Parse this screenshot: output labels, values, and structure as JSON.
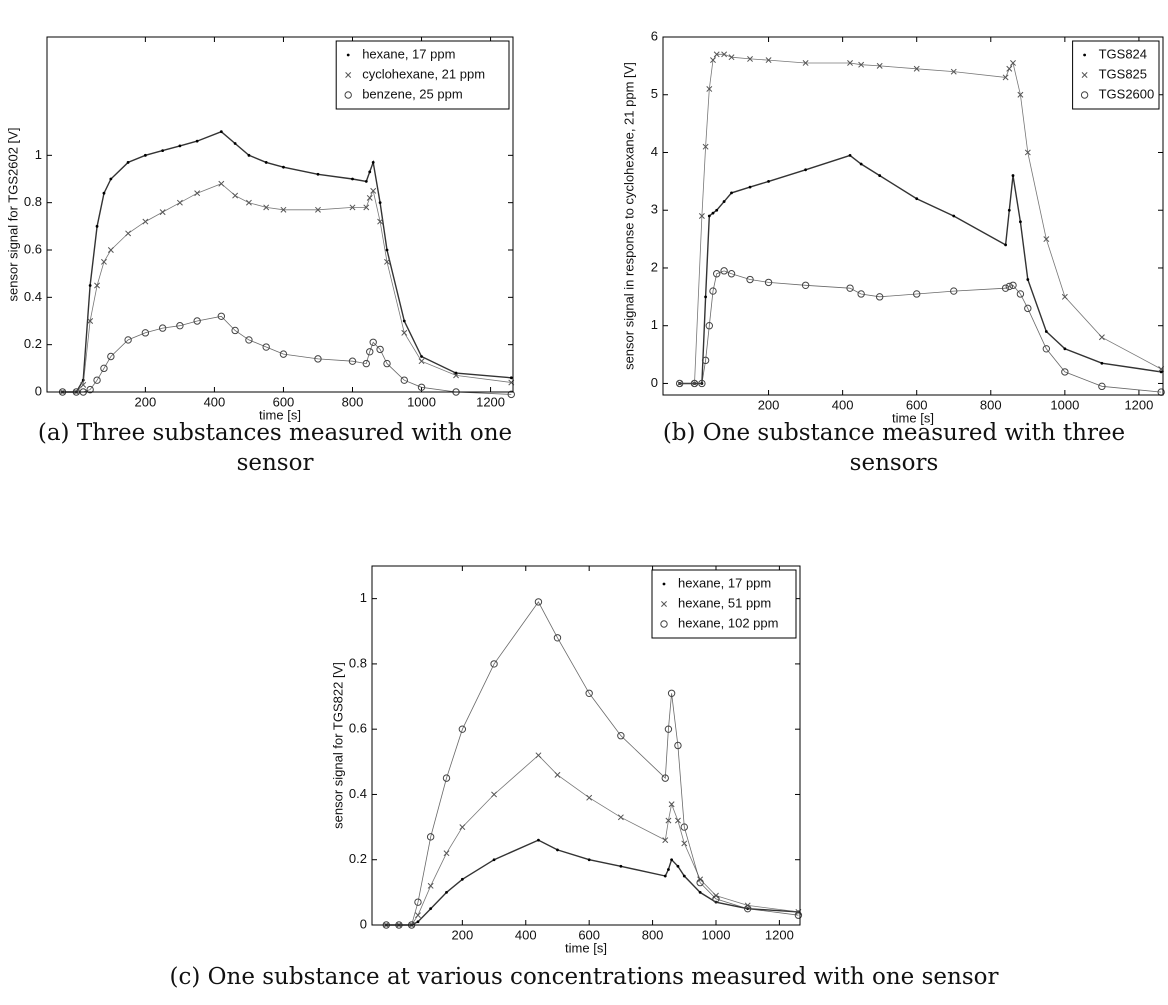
{
  "chart_data": [
    {
      "type": "scatter",
      "caption": "(a) Three substances measured with one sensor",
      "xlabel": "time [s]",
      "ylabel": "sensor signal for TGS2602 [V]",
      "xlim": [
        -85,
        1265
      ],
      "ylim": [
        0,
        1.5
      ],
      "xticks": [
        200,
        400,
        600,
        800,
        1000,
        1200
      ],
      "yticks": [
        0,
        0.2,
        0.4,
        0.6,
        0.8,
        1
      ],
      "legend": "upper right",
      "x": [
        -40,
        0,
        20,
        40,
        60,
        80,
        100,
        150,
        200,
        250,
        300,
        350,
        420,
        460,
        500,
        550,
        600,
        700,
        800,
        840,
        850,
        860,
        880,
        900,
        950,
        1000,
        1100,
        1260
      ],
      "series": [
        {
          "name": "hexane, 17 ppm",
          "marker": "dot",
          "color": "#000000",
          "values": [
            0,
            0,
            0.05,
            0.45,
            0.7,
            0.84,
            0.9,
            0.97,
            1.0,
            1.02,
            1.04,
            1.06,
            1.1,
            1.05,
            1.0,
            0.97,
            0.95,
            0.92,
            0.9,
            0.89,
            0.93,
            0.97,
            0.8,
            0.6,
            0.3,
            0.15,
            0.08,
            0.06
          ]
        },
        {
          "name": "cyclohexane, 21 ppm",
          "marker": "x",
          "color": "#555555",
          "values": [
            0,
            0,
            0.03,
            0.3,
            0.45,
            0.55,
            0.6,
            0.67,
            0.72,
            0.76,
            0.8,
            0.84,
            0.88,
            0.83,
            0.8,
            0.78,
            0.77,
            0.77,
            0.78,
            0.78,
            0.82,
            0.85,
            0.72,
            0.55,
            0.25,
            0.13,
            0.07,
            0.04
          ]
        },
        {
          "name": "benzene, 25 ppm",
          "marker": "o",
          "color": "#444444",
          "values": [
            0,
            0,
            0,
            0.01,
            0.05,
            0.1,
            0.15,
            0.22,
            0.25,
            0.27,
            0.28,
            0.3,
            0.32,
            0.26,
            0.22,
            0.19,
            0.16,
            0.14,
            0.13,
            0.12,
            0.17,
            0.21,
            0.18,
            0.12,
            0.05,
            0.02,
            0,
            -0.01
          ]
        }
      ]
    },
    {
      "type": "scatter",
      "caption": "(b) One substance measured with three sensors",
      "xlabel": "time [s]",
      "ylabel": "sensor signal in response to cyclohexane, 21 ppm [V]",
      "xlim": [
        -85,
        1265
      ],
      "ylim": [
        -0.2,
        6
      ],
      "xticks": [
        200,
        400,
        600,
        800,
        1000,
        1200
      ],
      "yticks": [
        0,
        1,
        2,
        3,
        4,
        5,
        6
      ],
      "legend": "upper right",
      "x": [
        -40,
        0,
        20,
        30,
        40,
        50,
        60,
        80,
        100,
        150,
        200,
        300,
        420,
        450,
        500,
        600,
        700,
        840,
        850,
        860,
        880,
        900,
        950,
        1000,
        1100,
        1260
      ],
      "series": [
        {
          "name": "TGS824",
          "marker": "dot",
          "color": "#000000",
          "values": [
            0,
            0,
            0,
            1.5,
            2.9,
            2.95,
            3.0,
            3.15,
            3.3,
            3.4,
            3.5,
            3.7,
            3.95,
            3.8,
            3.6,
            3.2,
            2.9,
            2.4,
            3.0,
            3.6,
            2.8,
            1.8,
            0.9,
            0.6,
            0.35,
            0.2
          ]
        },
        {
          "name": "TGS825",
          "marker": "x",
          "color": "#555555",
          "values": [
            0,
            0,
            2.9,
            4.1,
            5.1,
            5.6,
            5.7,
            5.7,
            5.65,
            5.62,
            5.6,
            5.55,
            5.55,
            5.52,
            5.5,
            5.45,
            5.4,
            5.3,
            5.45,
            5.55,
            5.0,
            4.0,
            2.5,
            1.5,
            0.8,
            0.25
          ]
        },
        {
          "name": "TGS2600",
          "marker": "o",
          "color": "#444444",
          "values": [
            0,
            0,
            0,
            0.4,
            1.0,
            1.6,
            1.9,
            1.95,
            1.9,
            1.8,
            1.75,
            1.7,
            1.65,
            1.55,
            1.5,
            1.55,
            1.6,
            1.65,
            1.68,
            1.7,
            1.55,
            1.3,
            0.6,
            0.2,
            -0.05,
            -0.15
          ]
        }
      ]
    },
    {
      "type": "scatter",
      "caption": "(c) One substance at various concentrations measured with one sensor",
      "xlabel": "time [s]",
      "ylabel": "sensor signal for TGS822 [V]",
      "xlim": [
        -85,
        1265
      ],
      "ylim": [
        0,
        1.1
      ],
      "xticks": [
        200,
        400,
        600,
        800,
        1000,
        1200
      ],
      "yticks": [
        0,
        0.2,
        0.4,
        0.6,
        0.8,
        1
      ],
      "legend": "upper right",
      "x": [
        -40,
        0,
        40,
        60,
        100,
        150,
        200,
        300,
        440,
        500,
        600,
        700,
        840,
        850,
        860,
        880,
        900,
        950,
        1000,
        1100,
        1260
      ],
      "series": [
        {
          "name": "hexane, 17 ppm",
          "marker": "dot",
          "color": "#000000",
          "values": [
            0,
            0,
            0,
            0.01,
            0.05,
            0.1,
            0.14,
            0.2,
            0.26,
            0.23,
            0.2,
            0.18,
            0.15,
            0.17,
            0.2,
            0.18,
            0.15,
            0.1,
            0.07,
            0.05,
            0.04
          ]
        },
        {
          "name": "hexane, 51 ppm",
          "marker": "x",
          "color": "#555555",
          "values": [
            0,
            0,
            0,
            0.03,
            0.12,
            0.22,
            0.3,
            0.4,
            0.52,
            0.46,
            0.39,
            0.33,
            0.26,
            0.32,
            0.37,
            0.32,
            0.25,
            0.14,
            0.09,
            0.06,
            0.04
          ]
        },
        {
          "name": "hexane, 102 ppm",
          "marker": "o",
          "color": "#444444",
          "values": [
            0,
            0,
            0,
            0.07,
            0.27,
            0.45,
            0.6,
            0.8,
            0.99,
            0.88,
            0.71,
            0.58,
            0.45,
            0.6,
            0.71,
            0.55,
            0.3,
            0.13,
            0.08,
            0.05,
            0.03
          ]
        }
      ]
    }
  ]
}
